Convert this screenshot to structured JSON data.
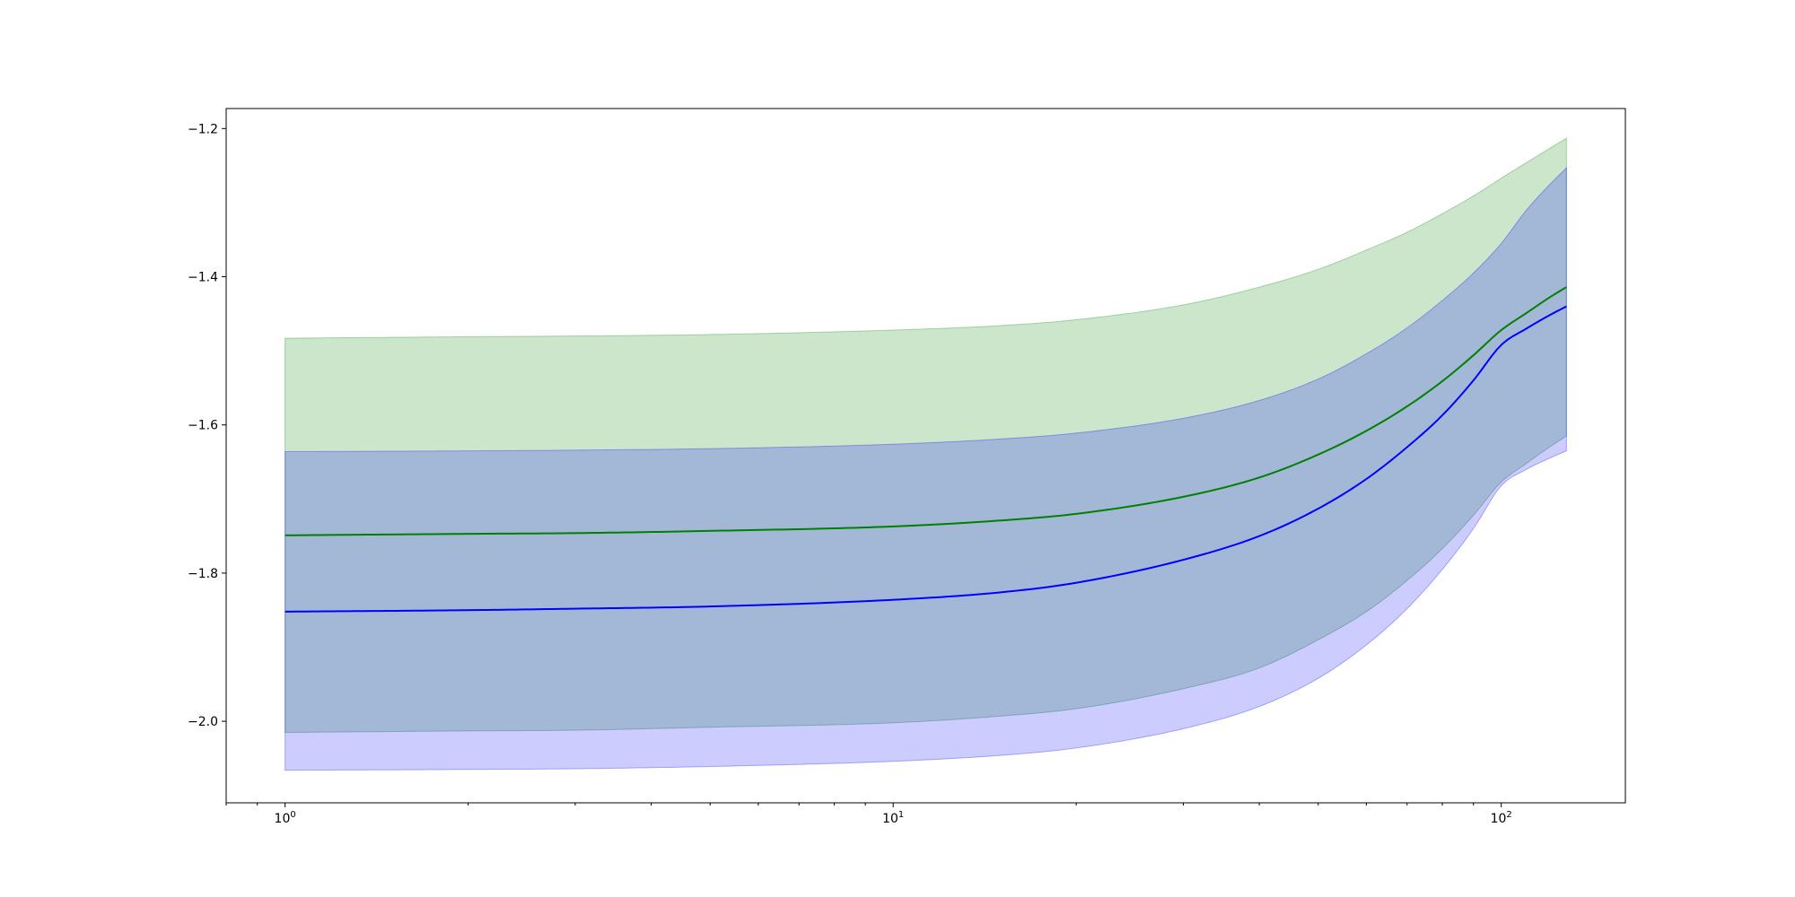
{
  "chart_data": {
    "type": "line",
    "title": "",
    "xlabel": "",
    "ylabel": "",
    "x_scale": "log",
    "xlim": [
      0.8,
      160
    ],
    "ylim": [
      -2.11,
      -1.173
    ],
    "grid": false,
    "legend": "none",
    "x_ticks": [
      {
        "value": 1,
        "base": "10",
        "exp": "0"
      },
      {
        "value": 10,
        "base": "10",
        "exp": "1"
      },
      {
        "value": 100,
        "base": "10",
        "exp": "2"
      }
    ],
    "y_ticks": [
      {
        "value": -1.2,
        "label": "−1.2"
      },
      {
        "value": -1.4,
        "label": "−1.4"
      },
      {
        "value": -1.6,
        "label": "−1.6"
      },
      {
        "value": -1.8,
        "label": "−1.8"
      },
      {
        "value": -2.0,
        "label": "−2.0"
      }
    ],
    "x": [
      1,
      2,
      3,
      5,
      10,
      15,
      20,
      30,
      40,
      50,
      60,
      70,
      80,
      90,
      100,
      110,
      120,
      128
    ],
    "series": [
      {
        "color": "#008000",
        "band_color": "#008000",
        "band_opacity": 0.2,
        "values": [
          -1.749,
          -1.747,
          -1.746,
          -1.743,
          -1.737,
          -1.729,
          -1.72,
          -1.697,
          -1.671,
          -1.64,
          -1.608,
          -1.575,
          -1.541,
          -1.506,
          -1.472,
          -1.449,
          -1.428,
          -1.414
        ],
        "upper": [
          -1.483,
          -1.481,
          -1.48,
          -1.478,
          -1.472,
          -1.466,
          -1.458,
          -1.438,
          -1.414,
          -1.39,
          -1.364,
          -1.34,
          -1.315,
          -1.291,
          -1.267,
          -1.246,
          -1.227,
          -1.213
        ],
        "lower": [
          -2.015,
          -2.013,
          -2.012,
          -2.008,
          -2.002,
          -1.993,
          -1.983,
          -1.956,
          -1.928,
          -1.89,
          -1.852,
          -1.81,
          -1.767,
          -1.722,
          -1.677,
          -1.652,
          -1.63,
          -1.615
        ]
      },
      {
        "color": "#0000ff",
        "band_color": "#0000ff",
        "band_opacity": 0.2,
        "values": [
          -1.852,
          -1.85,
          -1.848,
          -1.845,
          -1.836,
          -1.826,
          -1.813,
          -1.782,
          -1.75,
          -1.713,
          -1.673,
          -1.63,
          -1.587,
          -1.54,
          -1.492,
          -1.47,
          -1.452,
          -1.44
        ],
        "upper": [
          -1.636,
          -1.635,
          -1.634,
          -1.632,
          -1.626,
          -1.619,
          -1.611,
          -1.591,
          -1.567,
          -1.538,
          -1.504,
          -1.469,
          -1.432,
          -1.395,
          -1.355,
          -1.31,
          -1.276,
          -1.253
        ],
        "lower": [
          -2.066,
          -2.065,
          -2.064,
          -2.061,
          -2.054,
          -2.046,
          -2.036,
          -2.01,
          -1.98,
          -1.942,
          -1.897,
          -1.848,
          -1.795,
          -1.74,
          -1.682,
          -1.66,
          -1.645,
          -1.635
        ]
      }
    ]
  }
}
